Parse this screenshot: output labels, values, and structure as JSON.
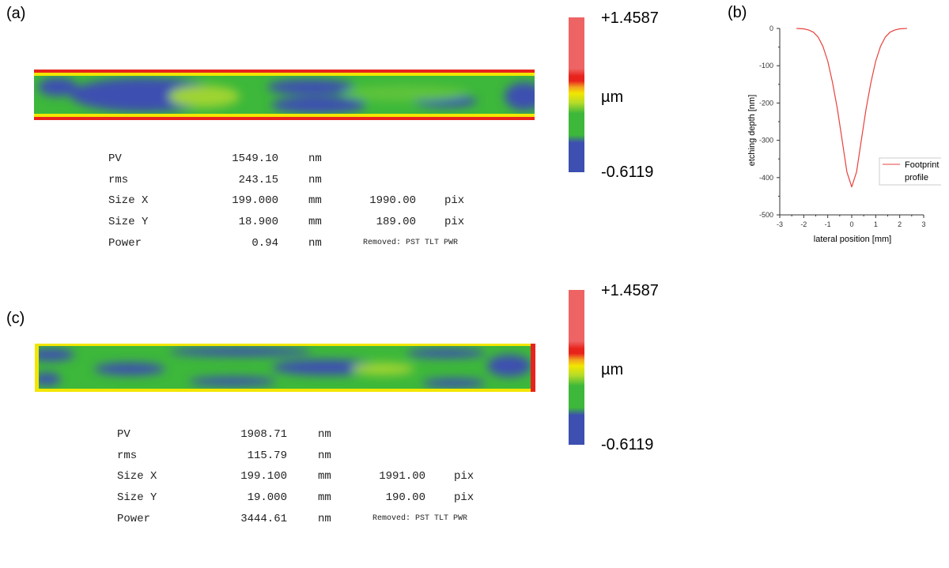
{
  "panels": {
    "a": {
      "label": "(a)",
      "stats": {
        "pv": {
          "name": "PV",
          "value": "1549.10",
          "unit": "nm"
        },
        "rms": {
          "name": "rms",
          "value": "243.15",
          "unit": "nm"
        },
        "size_x": {
          "name": "Size X",
          "value": "199.000",
          "unit": "mm",
          "pix_value": "1990.00",
          "pix_unit": "pix"
        },
        "size_y": {
          "name": "Size Y",
          "value": "18.900",
          "unit": "mm",
          "pix_value": "189.00",
          "pix_unit": "pix"
        },
        "power": {
          "name": "Power",
          "value": "0.94",
          "unit": "nm",
          "note": "Removed: PST TLT PWR"
        }
      },
      "colorbar": {
        "max": "+1.4587",
        "unit": "µm",
        "min": "-0.6119"
      }
    },
    "c": {
      "label": "(c)",
      "stats": {
        "pv": {
          "name": "PV",
          "value": "1908.71",
          "unit": "nm"
        },
        "rms": {
          "name": "rms",
          "value": "115.79",
          "unit": "nm"
        },
        "size_x": {
          "name": "Size X",
          "value": "199.100",
          "unit": "mm",
          "pix_value": "1991.00",
          "pix_unit": "pix"
        },
        "size_y": {
          "name": "Size Y",
          "value": "19.000",
          "unit": "mm",
          "pix_value": "190.00",
          "pix_unit": "pix"
        },
        "power": {
          "name": "Power",
          "value": "3444.61",
          "unit": "nm",
          "note": "Removed: PST TLT PWR"
        }
      },
      "colorbar": {
        "max": "+1.4587",
        "unit": "µm",
        "min": "-0.6119"
      }
    }
  },
  "colors": {
    "map_blue": "#3d4fb0",
    "map_green": "#3db83a",
    "map_yellow": "#f2e600",
    "map_red": "#e8231c",
    "cb_pink": "#ee6464",
    "curve": "#e8413c",
    "axis": "#333333"
  },
  "chart_data": {
    "type": "line",
    "panel_label": "(b)",
    "xlabel": "lateral position [mm]",
    "ylabel": "etching depth [nm]",
    "xlim": [
      -3,
      3
    ],
    "ylim": [
      -500,
      0
    ],
    "xticks": [
      -3,
      -2,
      -1,
      0,
      1,
      2,
      3
    ],
    "yticks": [
      0,
      -100,
      -200,
      -300,
      -400,
      -500
    ],
    "legend": {
      "lines": [
        "Footprint",
        "profile"
      ],
      "placement": "lower-right"
    },
    "series": [
      {
        "x": [
          -2.3,
          -2.0,
          -1.8,
          -1.6,
          -1.4,
          -1.2,
          -1.0,
          -0.8,
          -0.6,
          -0.4,
          -0.2,
          0.0,
          0.2,
          0.4,
          0.6,
          0.8,
          1.0,
          1.2,
          1.4,
          1.6,
          1.8,
          2.0,
          2.3
        ],
        "y": [
          0,
          -1,
          -4,
          -10,
          -23,
          -48,
          -88,
          -145,
          -215,
          -300,
          -385,
          -425,
          -385,
          -300,
          -215,
          -145,
          -88,
          -48,
          -23,
          -10,
          -4,
          -1,
          0
        ]
      }
    ]
  }
}
